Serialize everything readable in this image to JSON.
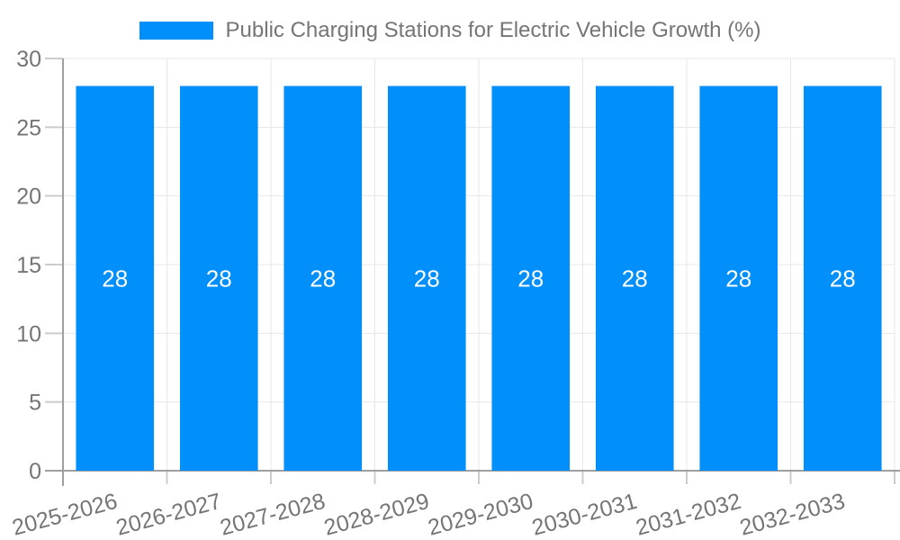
{
  "chart_data": {
    "type": "bar",
    "title": "Public Charging Stations for Electric Vehicle Growth (%)",
    "categories": [
      "2025-2026",
      "2026-2027",
      "2027-2028",
      "2028-2029",
      "2029-2030",
      "2030-2031",
      "2031-2032",
      "2032-2033"
    ],
    "values": [
      28,
      28,
      28,
      28,
      28,
      28,
      28,
      28
    ],
    "bar_value_labels": [
      "28",
      "28",
      "28",
      "28",
      "28",
      "28",
      "28",
      "28"
    ],
    "xlabel": "",
    "ylabel": "",
    "ylim": [
      0,
      30
    ],
    "ytick_step": 5,
    "ytick_labels": [
      "0",
      "5",
      "10",
      "15",
      "20",
      "25",
      "30"
    ],
    "grid": true,
    "legend_position": "top",
    "x_label_rotation_deg": -15,
    "colors": {
      "bar": "#008FFB",
      "bar_value_label": "#FFFFFF",
      "axis_text": "#757575",
      "legend_text": "#757575",
      "gridline": "#E7E7E7",
      "axis_line": "#A0A0A0",
      "tick": "#CCCCCC",
      "background": "#FFFFFF"
    }
  }
}
